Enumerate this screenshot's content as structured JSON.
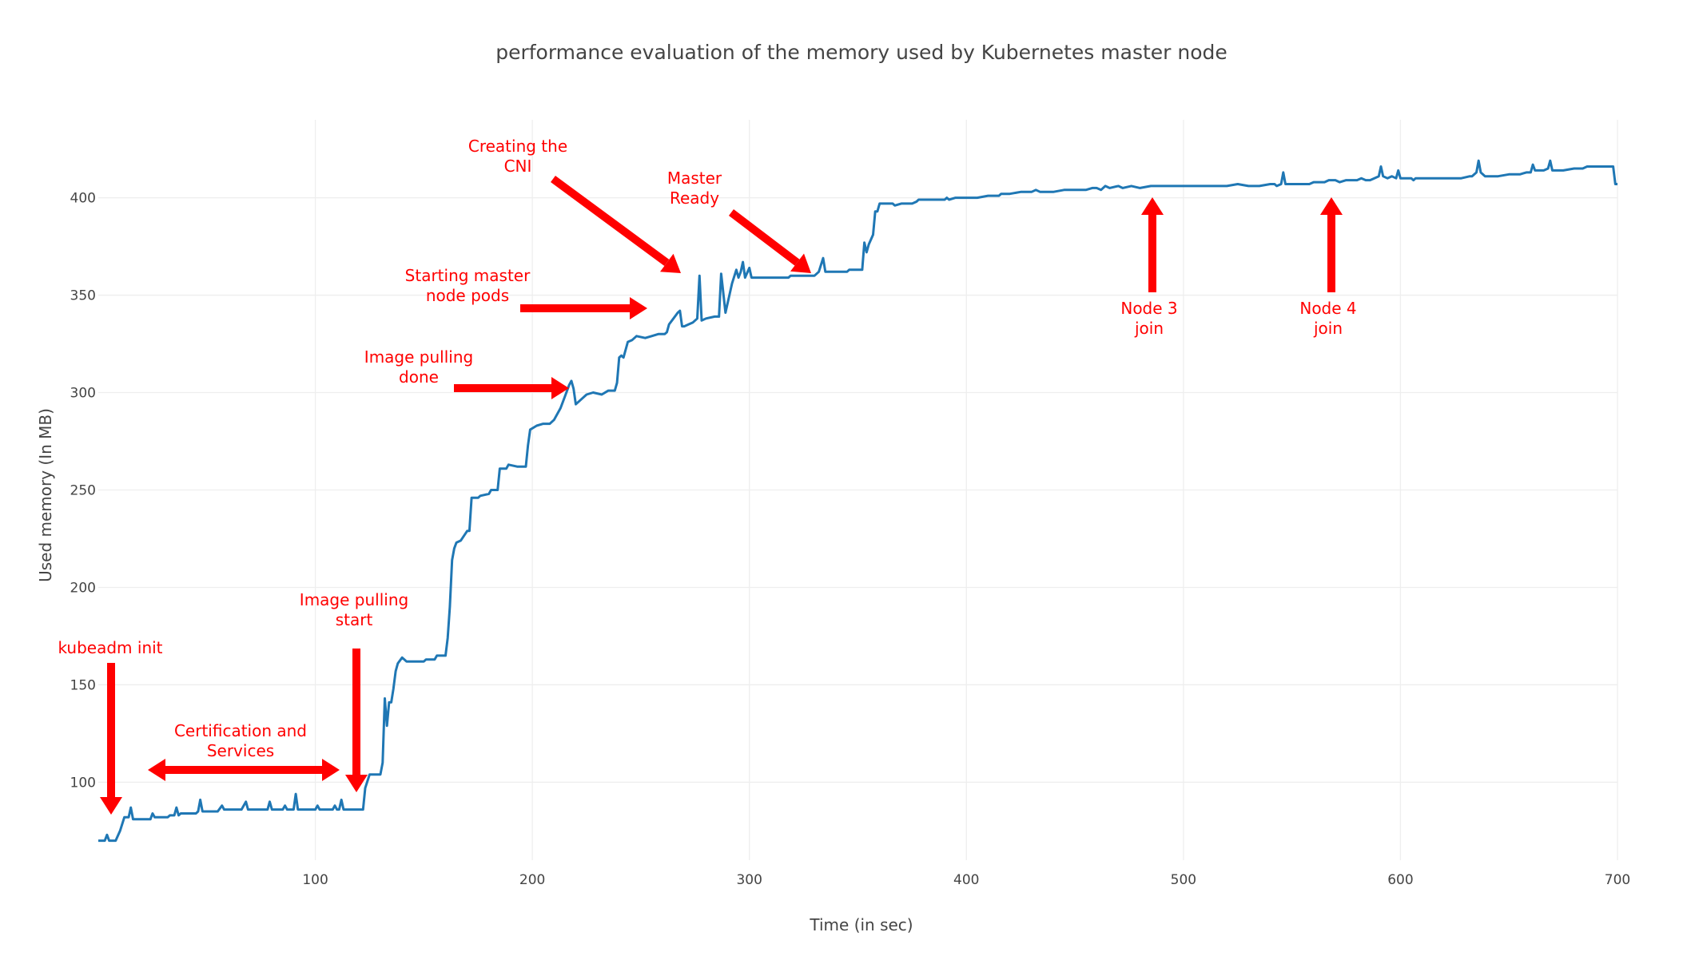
{
  "chart_data": {
    "type": "line",
    "title": "performance evaluation of the memory used by Kubernetes master node",
    "xlabel": "Time (in sec)",
    "ylabel": "Used memory (In MB)",
    "xlim": [
      0,
      700
    ],
    "ylim": [
      60,
      440
    ],
    "x_ticks": [
      100,
      200,
      300,
      400,
      500,
      600,
      700
    ],
    "y_ticks": [
      100,
      150,
      200,
      250,
      300,
      350,
      400
    ],
    "grid": true,
    "line_color": "#1f77b4",
    "annotation_color": "#ff0000",
    "series": [
      {
        "points": [
          [
            0,
            70
          ],
          [
            3,
            70
          ],
          [
            4,
            73
          ],
          [
            5,
            70
          ],
          [
            8,
            70
          ],
          [
            10,
            75
          ],
          [
            12,
            82
          ],
          [
            14,
            82
          ],
          [
            15,
            87
          ],
          [
            16,
            81
          ],
          [
            18,
            81
          ],
          [
            24,
            81
          ],
          [
            25,
            84
          ],
          [
            26,
            82
          ],
          [
            32,
            82
          ],
          [
            33,
            83
          ],
          [
            35,
            83
          ],
          [
            36,
            87
          ],
          [
            37,
            83
          ],
          [
            38,
            84
          ],
          [
            45,
            84
          ],
          [
            46,
            85
          ],
          [
            47,
            91
          ],
          [
            48,
            85
          ],
          [
            55,
            85
          ],
          [
            57,
            88
          ],
          [
            58,
            86
          ],
          [
            66,
            86
          ],
          [
            68,
            90
          ],
          [
            69,
            86
          ],
          [
            78,
            86
          ],
          [
            79,
            90
          ],
          [
            80,
            86
          ],
          [
            85,
            86
          ],
          [
            86,
            88
          ],
          [
            87,
            86
          ],
          [
            90,
            86
          ],
          [
            91,
            94
          ],
          [
            92,
            86
          ],
          [
            100,
            86
          ],
          [
            101,
            88
          ],
          [
            102,
            86
          ],
          [
            108,
            86
          ],
          [
            109,
            88
          ],
          [
            110,
            86
          ],
          [
            111,
            86
          ],
          [
            112,
            91
          ],
          [
            113,
            86
          ],
          [
            120,
            86
          ],
          [
            122,
            86
          ],
          [
            123,
            97
          ],
          [
            125,
            104
          ],
          [
            130,
            104
          ],
          [
            131,
            110
          ],
          [
            132,
            143
          ],
          [
            133,
            129
          ],
          [
            134,
            141
          ],
          [
            135,
            141
          ],
          [
            136,
            148
          ],
          [
            137,
            157
          ],
          [
            138,
            161
          ],
          [
            140,
            164
          ],
          [
            142,
            162
          ],
          [
            150,
            162
          ],
          [
            151,
            163
          ],
          [
            155,
            163
          ],
          [
            156,
            165
          ],
          [
            160,
            165
          ],
          [
            161,
            174
          ],
          [
            162,
            190
          ],
          [
            163,
            214
          ],
          [
            164,
            220
          ],
          [
            165,
            223
          ],
          [
            167,
            224
          ],
          [
            170,
            229
          ],
          [
            171,
            229
          ],
          [
            172,
            246
          ],
          [
            175,
            246
          ],
          [
            176,
            247
          ],
          [
            180,
            248
          ],
          [
            181,
            250
          ],
          [
            184,
            250
          ],
          [
            185,
            261
          ],
          [
            188,
            261
          ],
          [
            189,
            263
          ],
          [
            193,
            262
          ],
          [
            197,
            262
          ],
          [
            198,
            273
          ],
          [
            199,
            281
          ],
          [
            202,
            283
          ],
          [
            205,
            284
          ],
          [
            208,
            284
          ],
          [
            210,
            286
          ],
          [
            213,
            292
          ],
          [
            215,
            298
          ],
          [
            217,
            304
          ],
          [
            218,
            306
          ],
          [
            219,
            302
          ],
          [
            220,
            294
          ],
          [
            222,
            296
          ],
          [
            225,
            299
          ],
          [
            228,
            300
          ],
          [
            232,
            299
          ],
          [
            235,
            301
          ],
          [
            238,
            301
          ],
          [
            239,
            305
          ],
          [
            240,
            318
          ],
          [
            241,
            319
          ],
          [
            242,
            318
          ],
          [
            243,
            322
          ],
          [
            244,
            326
          ],
          [
            246,
            327
          ],
          [
            248,
            329
          ],
          [
            252,
            328
          ],
          [
            255,
            329
          ],
          [
            258,
            330
          ],
          [
            261,
            330
          ],
          [
            262,
            331
          ],
          [
            263,
            335
          ],
          [
            265,
            338
          ],
          [
            267,
            341
          ],
          [
            268,
            342
          ],
          [
            269,
            334
          ],
          [
            270,
            334
          ],
          [
            272,
            335
          ],
          [
            274,
            336
          ],
          [
            276,
            338
          ],
          [
            277,
            360
          ],
          [
            278,
            337
          ],
          [
            280,
            338
          ],
          [
            284,
            339
          ],
          [
            286,
            339
          ],
          [
            287,
            361
          ],
          [
            289,
            341
          ],
          [
            291,
            351
          ],
          [
            292,
            356
          ],
          [
            294,
            363
          ],
          [
            295,
            359
          ],
          [
            296,
            362
          ],
          [
            297,
            367
          ],
          [
            298,
            359
          ],
          [
            300,
            364
          ],
          [
            301,
            359
          ],
          [
            305,
            359
          ],
          [
            318,
            359
          ],
          [
            319,
            360
          ],
          [
            330,
            360
          ],
          [
            332,
            362
          ],
          [
            334,
            369
          ],
          [
            335,
            362
          ],
          [
            345,
            362
          ],
          [
            346,
            363
          ],
          [
            352,
            363
          ],
          [
            353,
            377
          ],
          [
            354,
            372
          ],
          [
            355,
            376
          ],
          [
            357,
            381
          ],
          [
            358,
            393
          ],
          [
            359,
            393
          ],
          [
            360,
            397
          ],
          [
            366,
            397
          ],
          [
            367,
            396
          ],
          [
            370,
            397
          ],
          [
            375,
            397
          ],
          [
            377,
            398
          ],
          [
            378,
            399
          ],
          [
            385,
            399
          ],
          [
            390,
            399
          ],
          [
            391,
            400
          ],
          [
            392,
            399
          ],
          [
            395,
            400
          ],
          [
            405,
            400
          ],
          [
            410,
            401
          ],
          [
            415,
            401
          ],
          [
            416,
            402
          ],
          [
            420,
            402
          ],
          [
            425,
            403
          ],
          [
            430,
            403
          ],
          [
            432,
            404
          ],
          [
            434,
            403
          ],
          [
            440,
            403
          ],
          [
            445,
            404
          ],
          [
            450,
            404
          ],
          [
            455,
            404
          ],
          [
            458,
            405
          ],
          [
            460,
            405
          ],
          [
            462,
            404
          ],
          [
            464,
            406
          ],
          [
            466,
            405
          ],
          [
            470,
            406
          ],
          [
            472,
            405
          ],
          [
            476,
            406
          ],
          [
            480,
            405
          ],
          [
            485,
            406
          ],
          [
            495,
            406
          ],
          [
            500,
            406
          ],
          [
            505,
            406
          ],
          [
            515,
            406
          ],
          [
            520,
            406
          ],
          [
            525,
            407
          ],
          [
            530,
            406
          ],
          [
            535,
            406
          ],
          [
            540,
            407
          ],
          [
            542,
            407
          ],
          [
            543,
            406
          ],
          [
            545,
            407
          ],
          [
            546,
            413
          ],
          [
            547,
            407
          ],
          [
            555,
            407
          ],
          [
            558,
            407
          ],
          [
            560,
            408
          ],
          [
            565,
            408
          ],
          [
            567,
            409
          ],
          [
            570,
            409
          ],
          [
            572,
            408
          ],
          [
            575,
            409
          ],
          [
            580,
            409
          ],
          [
            582,
            410
          ],
          [
            584,
            409
          ],
          [
            586,
            409
          ],
          [
            588,
            410
          ],
          [
            590,
            411
          ],
          [
            591,
            416
          ],
          [
            592,
            411
          ],
          [
            594,
            410
          ],
          [
            596,
            411
          ],
          [
            598,
            410
          ],
          [
            599,
            414
          ],
          [
            600,
            410
          ],
          [
            603,
            410
          ],
          [
            605,
            410
          ],
          [
            606,
            409
          ],
          [
            607,
            410
          ],
          [
            620,
            410
          ],
          [
            625,
            410
          ],
          [
            628,
            410
          ],
          [
            632,
            411
          ],
          [
            633,
            411
          ],
          [
            635,
            413
          ],
          [
            636,
            419
          ],
          [
            637,
            413
          ],
          [
            639,
            411
          ],
          [
            645,
            411
          ],
          [
            650,
            412
          ],
          [
            655,
            412
          ],
          [
            658,
            413
          ],
          [
            660,
            413
          ],
          [
            661,
            417
          ],
          [
            662,
            414
          ],
          [
            666,
            414
          ],
          [
            668,
            415
          ],
          [
            669,
            419
          ],
          [
            670,
            414
          ],
          [
            675,
            414
          ],
          [
            680,
            415
          ],
          [
            684,
            415
          ],
          [
            686,
            416
          ],
          [
            690,
            416
          ],
          [
            698,
            416
          ],
          [
            699,
            407
          ],
          [
            700,
            407
          ]
        ]
      }
    ],
    "annotations": [
      {
        "id": "kubeadm-init",
        "lines": [
          "kubeadm init"
        ],
        "arrow": "down"
      },
      {
        "id": "certification-services",
        "lines": [
          "Certification and",
          "Services"
        ],
        "arrow": "double-horizontal"
      },
      {
        "id": "image-pulling-start",
        "lines": [
          "Image pulling",
          "start"
        ],
        "arrow": "down"
      },
      {
        "id": "image-pulling-done",
        "lines": [
          "Image pulling",
          "done"
        ],
        "arrow": "right"
      },
      {
        "id": "starting-master-node-pods",
        "lines": [
          "Starting master",
          "node pods"
        ],
        "arrow": "right"
      },
      {
        "id": "creating-the-cni",
        "lines": [
          "Creating the",
          "CNI"
        ],
        "arrow": "diagonal"
      },
      {
        "id": "master-ready",
        "lines": [
          "Master",
          "Ready"
        ],
        "arrow": "diagonal"
      },
      {
        "id": "node-3-join",
        "lines": [
          "Node 3",
          "join"
        ],
        "arrow": "up"
      },
      {
        "id": "node-4-join",
        "lines": [
          "Node 4",
          "join"
        ],
        "arrow": "up"
      }
    ]
  }
}
